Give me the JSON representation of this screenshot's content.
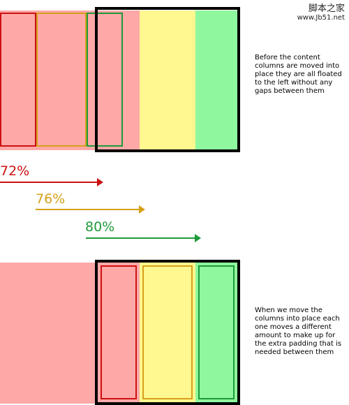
{
  "watermark": {
    "line1": "脚本之家",
    "line2": "www.Jb51.net"
  },
  "top_caption": "Before the content columns are moved into place they are all floated to the left without any gaps between them",
  "bottom_caption": "When we move the columns into place each one moves a different amount to make up for the extra padding that is needed between them",
  "arrows": [
    {
      "label": "72%",
      "color": "#cc1111"
    },
    {
      "label": "76%",
      "color": "#d6a01a"
    },
    {
      "label": "80%",
      "color": "#1e9a3a"
    }
  ]
}
